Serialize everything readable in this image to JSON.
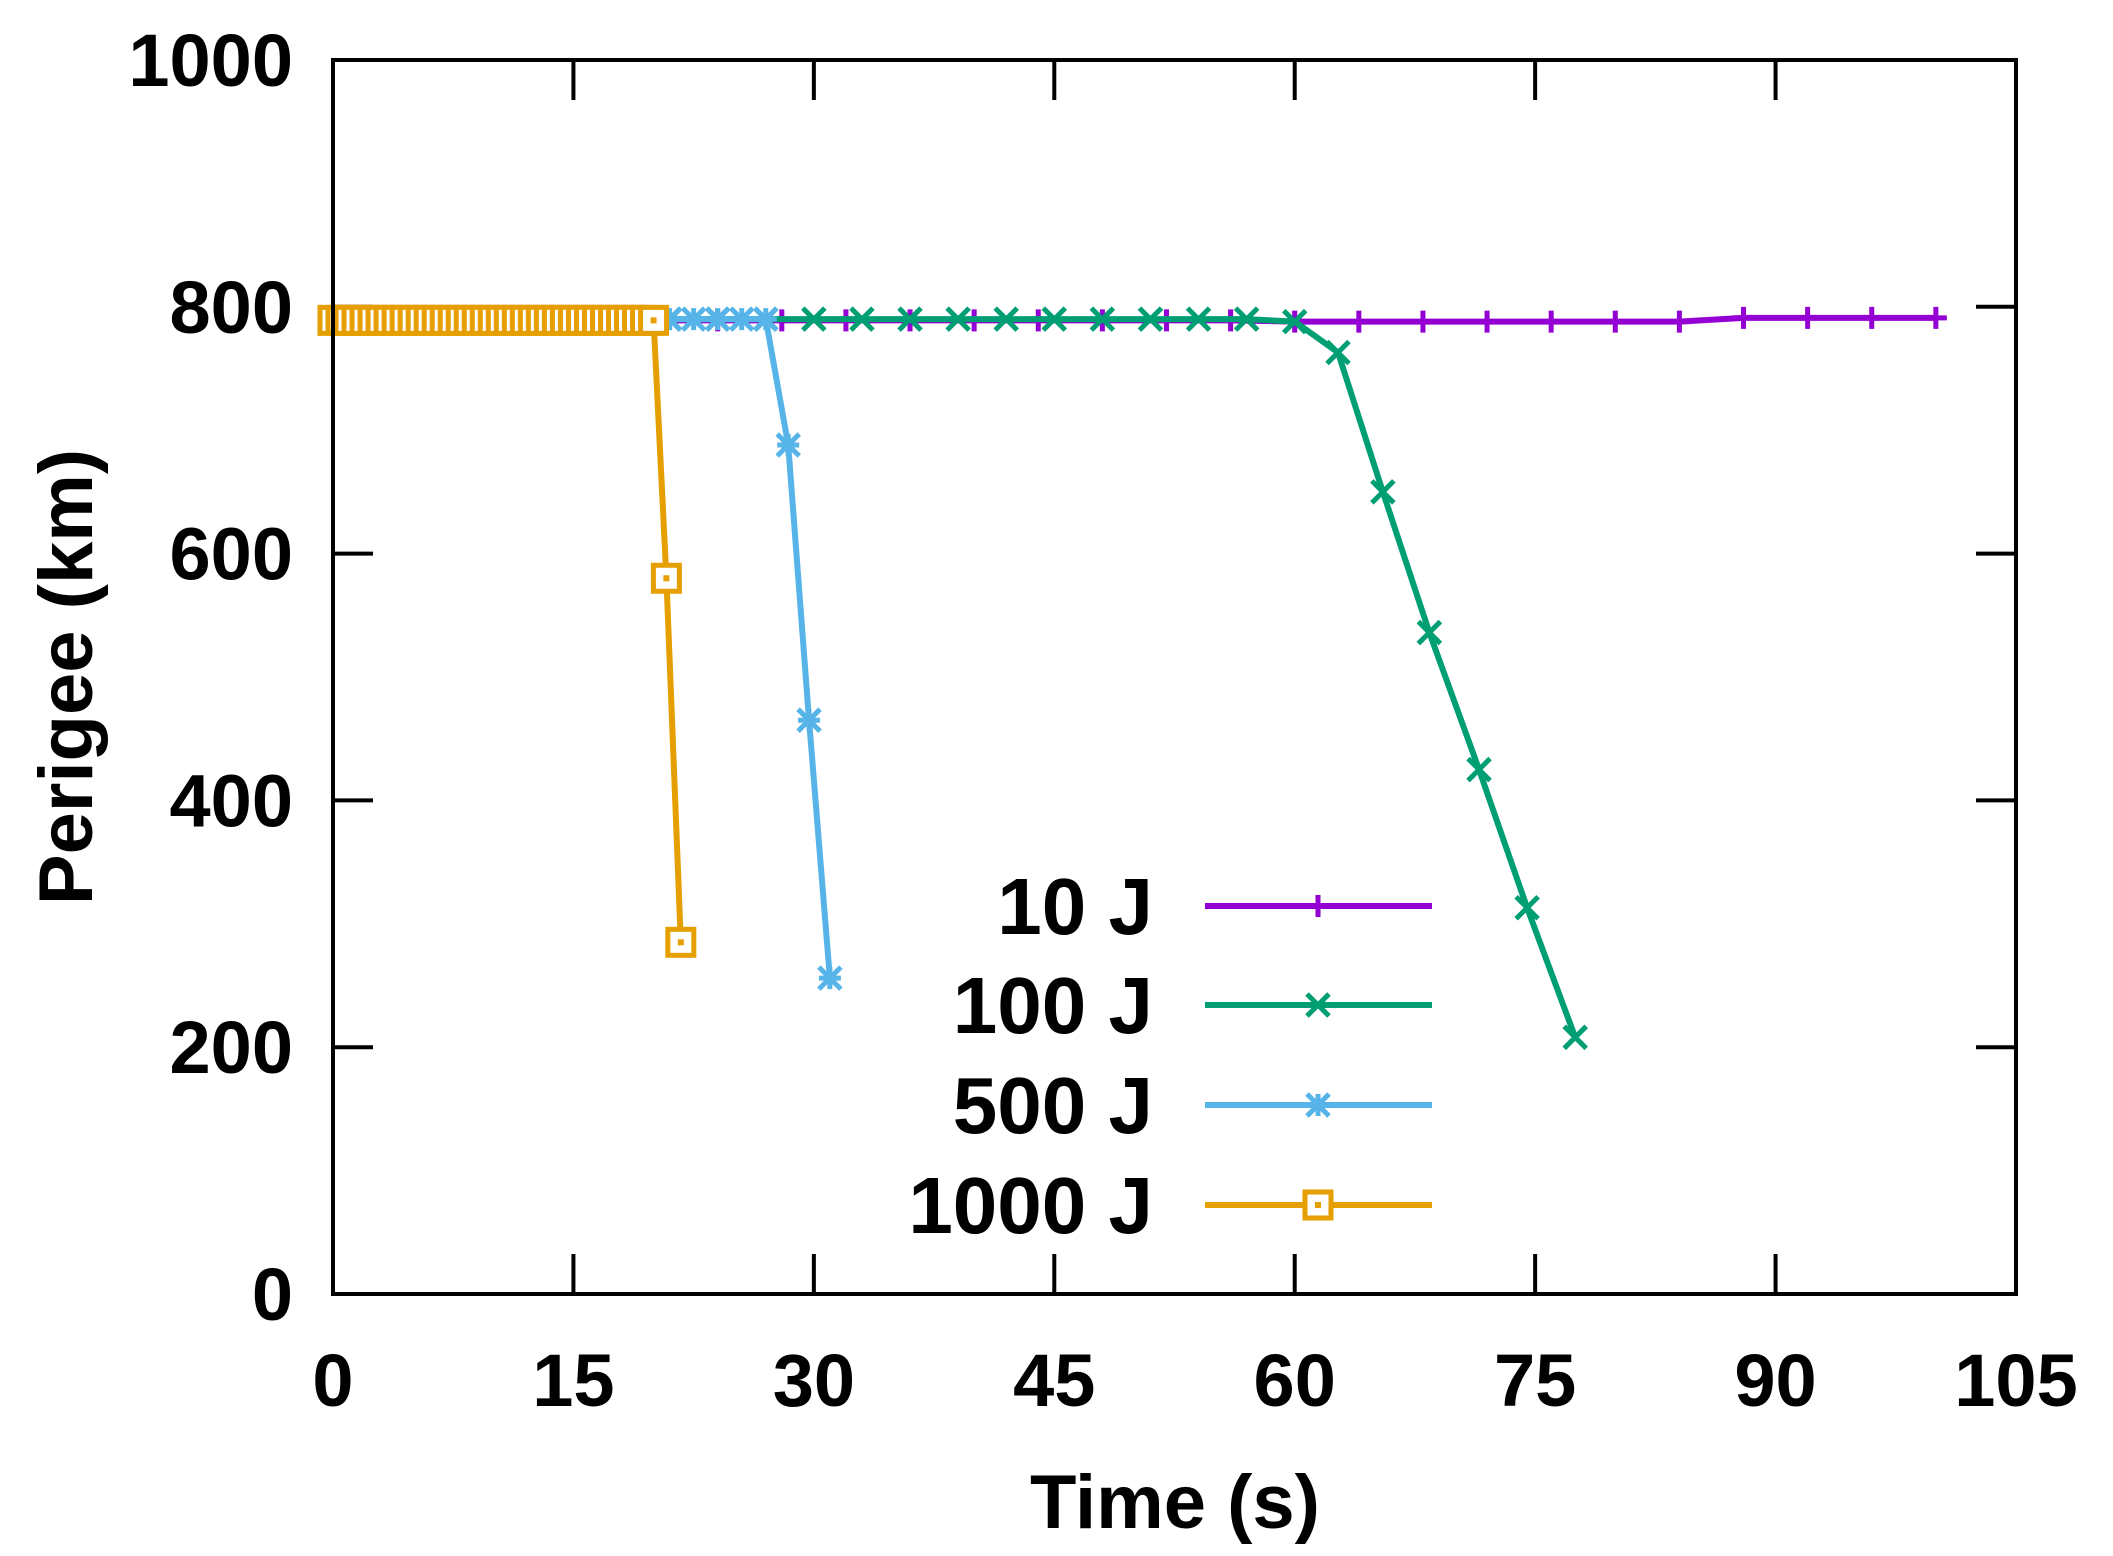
{
  "chart_data": {
    "type": "line",
    "title": "",
    "xlabel": "Time (s)",
    "ylabel": "Perigee (km)",
    "xlim": [
      0,
      105
    ],
    "ylim": [
      0,
      1000
    ],
    "xticks": [
      0,
      15,
      30,
      45,
      60,
      75,
      90,
      105
    ],
    "yticks": [
      0,
      200,
      400,
      600,
      800,
      1000
    ],
    "xtick_labels": [
      "0",
      "15",
      "30",
      "45",
      "60",
      "75",
      "90",
      "105"
    ],
    "ytick_labels": [
      "0",
      "200",
      "400",
      "600",
      "800",
      "1000"
    ],
    "grid": false,
    "legend_position": "bottom-center",
    "series": [
      {
        "name": "10 J",
        "color": "#9400d3",
        "marker": "plus",
        "x": [
          0,
          4,
          8,
          12,
          16,
          20,
          24,
          28,
          32,
          36,
          40,
          44,
          48,
          52,
          56,
          60,
          64,
          68,
          72,
          76,
          80,
          84,
          88,
          92,
          96,
          100
        ],
        "y": [
          789,
          789,
          789,
          789,
          789,
          789,
          789,
          789,
          789,
          789,
          789,
          789,
          789,
          789,
          789,
          788,
          788,
          788,
          788,
          788,
          788,
          788,
          791,
          791,
          791,
          791
        ]
      },
      {
        "name": "100 J",
        "color": "#009e73",
        "marker": "x",
        "x": [
          0,
          3,
          6,
          9,
          12,
          15,
          18,
          21,
          24,
          27,
          30,
          33,
          36,
          39,
          42,
          45,
          48,
          51,
          54,
          57,
          60,
          62.7,
          65.5,
          68.4,
          71.5,
          74.5,
          77.5
        ],
        "y": [
          790,
          790,
          790,
          790,
          790,
          790,
          790,
          790,
          790,
          790,
          790,
          790,
          790,
          790,
          790,
          790,
          790,
          790,
          790,
          790,
          788,
          763,
          650,
          536,
          425,
          313,
          208
        ]
      },
      {
        "name": "500 J",
        "color": "#56b4e9",
        "marker": "star",
        "x": [
          0,
          1.5,
          3,
          4.5,
          6,
          7.5,
          9,
          10.5,
          12,
          13.5,
          15,
          16.5,
          18,
          19.5,
          21,
          22.5,
          24,
          25.5,
          27,
          28.4,
          29.7,
          31
        ],
        "y": [
          790,
          790,
          790,
          790,
          790,
          790,
          790,
          790,
          790,
          790,
          790,
          790,
          790,
          790,
          790,
          790,
          790,
          790,
          790,
          688,
          465,
          256
        ]
      },
      {
        "name": "1000 J",
        "color": "#e69f00",
        "marker": "square",
        "x": [
          0,
          0.5,
          1,
          1.5,
          2,
          2.5,
          3,
          3.5,
          4,
          4.5,
          5,
          5.5,
          6,
          6.5,
          7,
          7.5,
          8,
          8.5,
          9,
          9.5,
          10,
          10.5,
          11,
          11.5,
          12,
          12.5,
          13,
          13.5,
          14,
          14.5,
          15,
          15.5,
          16,
          16.5,
          17,
          17.5,
          18,
          18.5,
          19,
          19.5,
          20,
          20.8,
          21.7
        ],
        "y": [
          789,
          789,
          789,
          789,
          789,
          789,
          789,
          789,
          789,
          789,
          789,
          789,
          789,
          789,
          789,
          789,
          789,
          789,
          789,
          789,
          789,
          789,
          789,
          789,
          789,
          789,
          789,
          789,
          789,
          789,
          789,
          789,
          789,
          789,
          789,
          789,
          789,
          789,
          789,
          789,
          789,
          580,
          285
        ]
      }
    ]
  }
}
